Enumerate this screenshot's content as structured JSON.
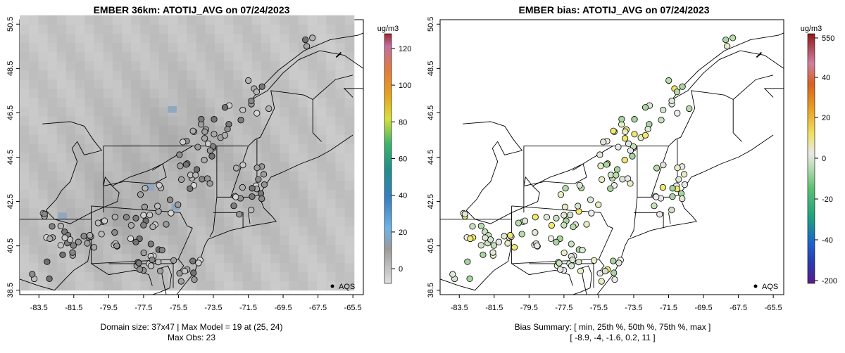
{
  "chart_data": [
    {
      "type": "heatmap",
      "title": "EMBER 36km: ATOTIJ_AVG on 07/24/2023",
      "x_ticks": [
        "-83.5",
        "-81.5",
        "-79.5",
        "-77.5",
        "-75.5",
        "-73.5",
        "-71.5",
        "-69.5",
        "-67.5",
        "-65.5"
      ],
      "y_ticks": [
        "38.5",
        "40.5",
        "42.5",
        "44.5",
        "46.5",
        "48.5",
        "50.5"
      ],
      "xlim": [
        -84.6,
        -64.9
      ],
      "ylim": [
        38.3,
        50.7
      ],
      "colorbar": {
        "unit": "ug/m3",
        "ticks": [
          "0",
          "20",
          "40",
          "60",
          "80",
          "100",
          "120"
        ],
        "range": [
          -8,
          128
        ]
      },
      "legend": "AQS",
      "caption_lines": [
        "Domain size: 37x47 | Max Model = 19 at (25, 24)",
        "Max Obs: 23"
      ]
    },
    {
      "type": "scatter",
      "title": "EMBER bias: ATOTIJ_AVG on 07/24/2023",
      "x_ticks": [
        "-83.5",
        "-81.5",
        "-79.5",
        "-77.5",
        "-75.5",
        "-73.5",
        "-71.5",
        "-69.5",
        "-67.5",
        "-65.5"
      ],
      "y_ticks": [
        "38.5",
        "40.5",
        "42.5",
        "44.5",
        "46.5",
        "48.5",
        "50.5"
      ],
      "xlim": [
        -84.6,
        -64.9
      ],
      "ylim": [
        38.3,
        50.7
      ],
      "colorbar": {
        "unit": "ug/m3",
        "ticks": [
          "550",
          "40",
          "20",
          "0",
          "-20",
          "-40",
          "-200"
        ]
      },
      "legend": "AQS",
      "caption_lines": [
        "Bias Summary: [ min, 25th %, 50th %, 75th %, max ]",
        "[ -8.9,   -4,   -1.6,   0.2,   11 ]"
      ]
    }
  ]
}
